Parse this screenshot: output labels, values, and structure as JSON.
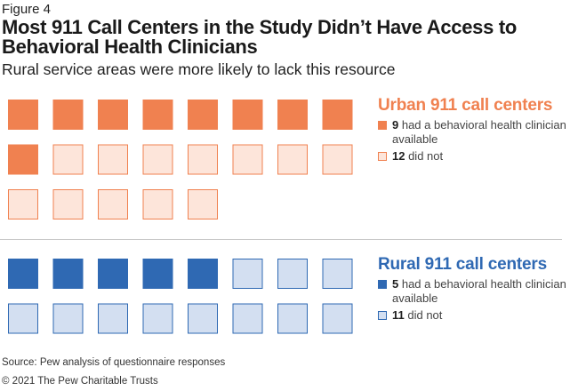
{
  "figure_label": "Figure 4",
  "title": "Most 911 Call Centers in the Study Didn’t Have Access to Behavioral Health Clinicians",
  "subtitle": "Rural service areas were more likely to lack this resource",
  "colors": {
    "urban_filled": "#f08150",
    "urban_empty_fill": "#fde5da",
    "urban_empty_stroke": "#f08150",
    "rural_filled": "#2f69b3",
    "rural_empty_fill": "#d3dff1",
    "rural_empty_stroke": "#2f69b3"
  },
  "legend": {
    "urban": {
      "title": "Urban 911 call centers",
      "had_count": "9",
      "had_text": " had a behavioral health clinician available",
      "not_count": "12",
      "not_text": " did not"
    },
    "rural": {
      "title": "Rural 911 call centers",
      "had_count": "5",
      "had_text": " had a behavioral health clinician available",
      "not_count": "11",
      "not_text": " did not"
    }
  },
  "chart_data": {
    "type": "waffle",
    "series": [
      {
        "name": "Urban 911 call centers",
        "had": 9,
        "did_not": 12
      },
      {
        "name": "Rural 911 call centers",
        "had": 5,
        "did_not": 11
      }
    ]
  },
  "source": "Source: Pew analysis of questionnaire responses",
  "copyright": "© 2021 The Pew Charitable Trusts"
}
